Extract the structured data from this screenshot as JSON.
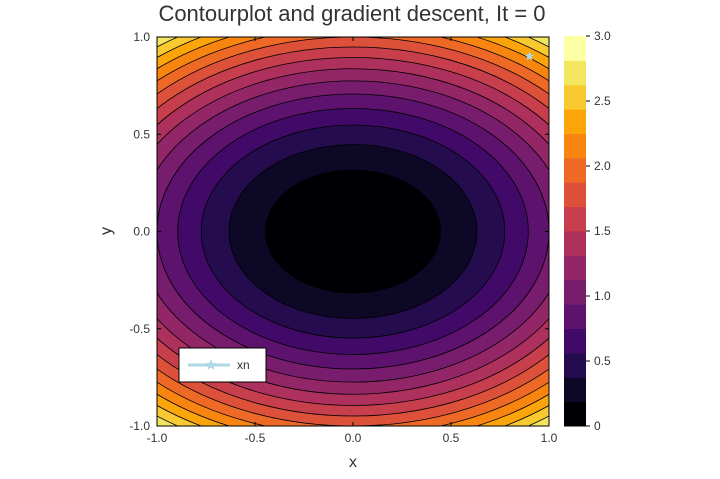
{
  "chart_data": {
    "type": "contour",
    "title": "Contourplot and gradient descent, It = 0",
    "xlabel": "x",
    "ylabel": "y",
    "xlim": [
      -1.0,
      1.0
    ],
    "ylim": [
      -1.0,
      1.0
    ],
    "x_ticks": [
      "-1.0",
      "-0.5",
      "0.0",
      "0.5",
      "1.0"
    ],
    "y_ticks": [
      "-1.0",
      "-0.5",
      "0.0",
      "0.5",
      "1.0"
    ],
    "function": "f(x, y) = x^2 + 2 y^2",
    "levels": [
      0,
      0.2,
      0.4,
      0.6,
      0.8,
      1.0,
      1.2,
      1.4,
      1.6,
      1.8,
      2.0,
      2.2,
      2.4,
      2.6,
      2.8,
      3.0
    ],
    "colormap": "inferno",
    "colorbar": {
      "range": [
        0,
        3.0
      ],
      "ticks": [
        "0",
        "0.5",
        "1.0",
        "1.5",
        "2.0",
        "2.5",
        "3.0"
      ],
      "colors": [
        "#000004",
        "#0c0826",
        "#240c4f",
        "#420a68",
        "#5d126e",
        "#781c6d",
        "#932667",
        "#ae305c",
        "#c73e4c",
        "#dd513a",
        "#ed6925",
        "#f8850f",
        "#fca50a",
        "#f9c932",
        "#f2e661",
        "#fcffa4"
      ]
    },
    "series": [
      {
        "name": "xn",
        "color": "#add8e6",
        "marker": "star",
        "points": [
          [
            0.9,
            0.9
          ]
        ]
      }
    ],
    "legend": {
      "position": "bottom-left"
    },
    "grid": false
  }
}
